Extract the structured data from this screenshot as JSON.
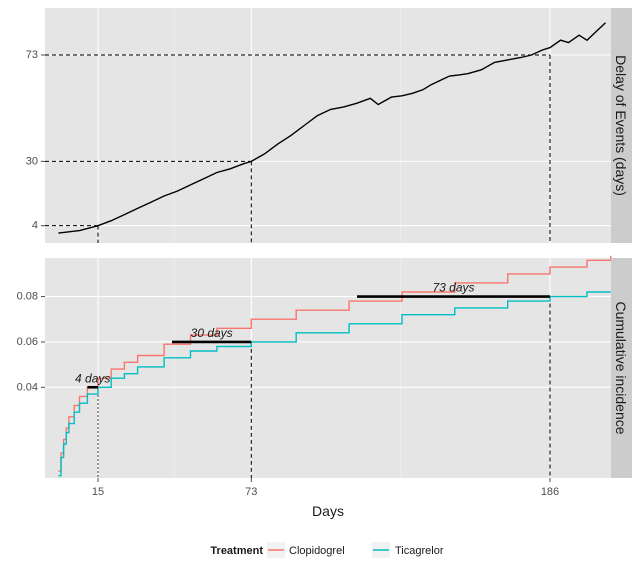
{
  "chart_data": [
    {
      "type": "line",
      "panel_label": "Delay of Events (days)",
      "ylim": [
        -3,
        92
      ],
      "y_ticks": [
        4,
        30,
        73
      ],
      "y_tick_labels": [
        "4",
        "30",
        "73"
      ],
      "series": [
        {
          "x": [
            0,
            8,
            15,
            20,
            25,
            30,
            35,
            40,
            45,
            50,
            55,
            60,
            65,
            70,
            73,
            78,
            83,
            88,
            93,
            98,
            103,
            108,
            113,
            118,
            121,
            126,
            130,
            134,
            138,
            141,
            145,
            148,
            152,
            155,
            160,
            165,
            170,
            175,
            179,
            183,
            186,
            190,
            193,
            197,
            200,
            203,
            207
          ],
          "values": [
            1,
            2,
            4,
            6,
            8.5,
            11,
            13.5,
            16,
            18,
            20.5,
            23,
            25.5,
            27,
            29,
            30,
            33,
            37,
            40.5,
            44.5,
            48.5,
            51,
            52,
            53.5,
            55.5,
            53,
            56,
            56.5,
            57.5,
            59,
            61,
            63,
            64.5,
            65,
            65.5,
            67,
            70,
            71,
            72,
            73,
            75,
            76,
            79,
            78,
            81,
            79,
            82,
            86
          ]
        }
      ],
      "reference_lines": [
        {
          "x": 15,
          "y": 4
        },
        {
          "x": 73,
          "y": 30
        },
        {
          "x": 186,
          "y": 73
        }
      ]
    },
    {
      "type": "line",
      "panel_label": "Cumulative incidence",
      "ylim": [
        0,
        0.097
      ],
      "y_ticks": [
        0.04,
        0.06,
        0.08
      ],
      "y_tick_labels": [
        "0.04",
        "0.06",
        "0.08"
      ],
      "xlabel": "Days",
      "x_ticks": [
        15,
        73,
        186
      ],
      "x_tick_labels": [
        "15",
        "73",
        "186"
      ],
      "series": [
        {
          "name": "Clopidogrel",
          "color": "#F8766D",
          "x": [
            0,
            1,
            2,
            3,
            4,
            6,
            8,
            11,
            15,
            20,
            25,
            30,
            40,
            50,
            60,
            73,
            90,
            110,
            130,
            150,
            170,
            186,
            200,
            209
          ],
          "values": [
            0.003,
            0.011,
            0.017,
            0.022,
            0.027,
            0.032,
            0.036,
            0.04,
            0.044,
            0.048,
            0.051,
            0.054,
            0.059,
            0.063,
            0.066,
            0.07,
            0.074,
            0.078,
            0.082,
            0.086,
            0.09,
            0.093,
            0.096,
            0.098
          ]
        },
        {
          "name": "Ticagrelor",
          "color": "#00BFC4",
          "x": [
            0,
            1,
            2,
            3,
            4,
            6,
            8,
            11,
            15,
            20,
            25,
            30,
            40,
            50,
            60,
            73,
            90,
            110,
            130,
            150,
            170,
            186,
            200,
            209
          ],
          "values": [
            0.001,
            0.009,
            0.015,
            0.02,
            0.024,
            0.029,
            0.033,
            0.037,
            0.04,
            0.044,
            0.046,
            0.049,
            0.053,
            0.056,
            0.058,
            0.06,
            0.064,
            0.068,
            0.072,
            0.075,
            0.078,
            0.08,
            0.082,
            0.082
          ]
        }
      ],
      "annotations": [
        {
          "label": "4 days",
          "x_start": 11,
          "x_end": 15,
          "y": 0.04
        },
        {
          "label": "30 days",
          "x_start": 43,
          "x_end": 73,
          "y": 0.06
        },
        {
          "label": "73 days",
          "x_start": 113,
          "x_end": 186,
          "y": 0.08
        }
      ]
    }
  ],
  "legend": {
    "title": "Treatment",
    "items": [
      {
        "label": "Clopidogrel",
        "color": "#F8766D"
      },
      {
        "label": "Ticagrelor",
        "color": "#00BFC4"
      }
    ]
  },
  "colors": {
    "panel_background": "#E5E5E5",
    "strip_background": "#CCCCCC",
    "grid": "#FFFFFF",
    "delay_line": "#000000"
  }
}
